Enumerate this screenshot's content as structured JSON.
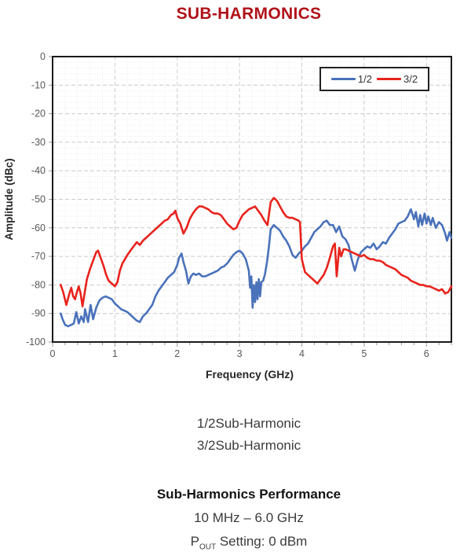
{
  "page": {
    "title": "SUB-HARMONICS"
  },
  "colors": {
    "title": "#b0121a",
    "series_blue": "#4a72ba",
    "series_red": "#e8231c"
  },
  "captions": {
    "line1": "1/2Sub-Harmonic",
    "line2": "3/2Sub-Harmonic"
  },
  "performance": {
    "heading": "Sub-Harmonics Performance",
    "range": "10 MHz – 6.0 GHz",
    "pout_prefix": "P",
    "pout_sub": "OUT",
    "pout_rest": " Setting: 0 dBm"
  },
  "chart_data": {
    "type": "line",
    "title": "SUB-HARMONICS",
    "xlabel": "Frequency (GHz)",
    "ylabel": "Amplitude (dBc)",
    "xlim": [
      0,
      6.4
    ],
    "ylim": [
      -100,
      0
    ],
    "x_major_ticks": [
      0,
      1,
      2,
      3,
      4,
      5,
      6
    ],
    "x_minor_step": 0.2,
    "y_major_ticks": [
      0,
      -10,
      -20,
      -30,
      -40,
      -50,
      -60,
      -70,
      -80,
      -90,
      -100
    ],
    "y_minor_step": 2,
    "grid": true,
    "legend_position": "top-right",
    "series": [
      {
        "name": "1/2",
        "color": "#4a72ba",
        "x": [
          0.13,
          0.16,
          0.2,
          0.25,
          0.3,
          0.34,
          0.38,
          0.42,
          0.46,
          0.5,
          0.52,
          0.57,
          0.61,
          0.65,
          0.7,
          0.75,
          0.8,
          0.85,
          0.9,
          0.95,
          1.0,
          1.05,
          1.1,
          1.15,
          1.2,
          1.25,
          1.3,
          1.35,
          1.4,
          1.45,
          1.5,
          1.55,
          1.6,
          1.65,
          1.7,
          1.75,
          1.8,
          1.85,
          1.9,
          1.95,
          2.0,
          2.03,
          2.07,
          2.1,
          2.14,
          2.18,
          2.22,
          2.26,
          2.3,
          2.35,
          2.4,
          2.45,
          2.5,
          2.55,
          2.6,
          2.65,
          2.7,
          2.75,
          2.8,
          2.85,
          2.9,
          2.95,
          3.0,
          3.05,
          3.1,
          3.15,
          3.17,
          3.19,
          3.21,
          3.23,
          3.25,
          3.27,
          3.29,
          3.31,
          3.33,
          3.35,
          3.38,
          3.41,
          3.44,
          3.47,
          3.5,
          3.55,
          3.6,
          3.65,
          3.7,
          3.75,
          3.8,
          3.85,
          3.9,
          3.95,
          4.0,
          4.05,
          4.1,
          4.15,
          4.2,
          4.25,
          4.3,
          4.35,
          4.4,
          4.45,
          4.5,
          4.55,
          4.6,
          4.65,
          4.7,
          4.75,
          4.8,
          4.85,
          4.9,
          4.95,
          5.0,
          5.05,
          5.1,
          5.15,
          5.2,
          5.25,
          5.3,
          5.35,
          5.4,
          5.45,
          5.5,
          5.55,
          5.6,
          5.65,
          5.7,
          5.75,
          5.8,
          5.83,
          5.87,
          5.9,
          5.93,
          5.97,
          6.0,
          6.03,
          6.07,
          6.1,
          6.15,
          6.2,
          6.25,
          6.3,
          6.33,
          6.37,
          6.4
        ],
        "y": [
          -90,
          -92,
          -94,
          -94.5,
          -94,
          -93.5,
          -89.5,
          -93.5,
          -91,
          -93,
          -88.5,
          -93,
          -87,
          -92,
          -88,
          -85.5,
          -84.5,
          -84,
          -84.5,
          -85,
          -86.5,
          -87.5,
          -88.5,
          -89,
          -89.5,
          -90.5,
          -91.5,
          -92.5,
          -93,
          -91,
          -90,
          -88.5,
          -87,
          -84,
          -82,
          -80.5,
          -79,
          -77.5,
          -76.5,
          -75.5,
          -73,
          -70.5,
          -69,
          -72,
          -75,
          -79.5,
          -77,
          -76,
          -76.5,
          -76,
          -77,
          -77,
          -76.5,
          -76,
          -75.5,
          -75,
          -74,
          -73.5,
          -72.5,
          -71,
          -69.5,
          -68.5,
          -68,
          -69,
          -71,
          -75,
          -81,
          -77,
          -88,
          -80,
          -86,
          -79,
          -85,
          -78,
          -84,
          -79,
          -78.5,
          -76,
          -72,
          -67,
          -60.5,
          -59,
          -60,
          -61,
          -63,
          -64.5,
          -66.5,
          -69.5,
          -70.5,
          -69,
          -68,
          -66.5,
          -65.5,
          -63.5,
          -61.5,
          -60.5,
          -59.5,
          -58,
          -57.5,
          -59,
          -59,
          -61.5,
          -59.5,
          -63,
          -64,
          -66,
          -71,
          -75,
          -71,
          -68.5,
          -67.5,
          -66.5,
          -67,
          -65.5,
          -67.5,
          -66.5,
          -65,
          -65.5,
          -63.5,
          -62,
          -60.5,
          -58.5,
          -58,
          -57.5,
          -56,
          -53.5,
          -57,
          -54.5,
          -59.5,
          -55.5,
          -59,
          -55,
          -58.5,
          -56,
          -59,
          -56.5,
          -60,
          -58,
          -59,
          -62,
          -64.5,
          -61.5,
          -63.5
        ]
      },
      {
        "name": "3/2",
        "color": "#e8231c",
        "x": [
          0.13,
          0.17,
          0.22,
          0.27,
          0.3,
          0.33,
          0.36,
          0.39,
          0.42,
          0.45,
          0.48,
          0.52,
          0.55,
          0.6,
          0.65,
          0.7,
          0.73,
          0.78,
          0.82,
          0.86,
          0.9,
          0.95,
          1.0,
          1.04,
          1.08,
          1.12,
          1.16,
          1.2,
          1.25,
          1.3,
          1.35,
          1.4,
          1.45,
          1.5,
          1.55,
          1.6,
          1.65,
          1.7,
          1.75,
          1.8,
          1.85,
          1.9,
          1.94,
          1.97,
          2.0,
          2.05,
          2.1,
          2.15,
          2.2,
          2.25,
          2.3,
          2.35,
          2.4,
          2.45,
          2.5,
          2.55,
          2.6,
          2.65,
          2.7,
          2.75,
          2.8,
          2.85,
          2.9,
          2.95,
          3.0,
          3.05,
          3.1,
          3.15,
          3.2,
          3.25,
          3.3,
          3.35,
          3.4,
          3.45,
          3.5,
          3.55,
          3.6,
          3.65,
          3.7,
          3.75,
          3.8,
          3.85,
          3.9,
          3.95,
          3.97,
          4.0,
          4.05,
          4.1,
          4.15,
          4.2,
          4.25,
          4.3,
          4.35,
          4.4,
          4.45,
          4.5,
          4.53,
          4.56,
          4.6,
          4.63,
          4.67,
          4.7,
          4.75,
          4.8,
          4.85,
          4.9,
          4.95,
          5.0,
          5.05,
          5.1,
          5.15,
          5.2,
          5.25,
          5.3,
          5.35,
          5.4,
          5.45,
          5.5,
          5.55,
          5.6,
          5.65,
          5.7,
          5.75,
          5.8,
          5.85,
          5.9,
          5.95,
          6.0,
          6.05,
          6.1,
          6.15,
          6.2,
          6.25,
          6.3,
          6.35,
          6.4
        ],
        "y": [
          -80,
          -82.5,
          -87,
          -83,
          -81,
          -84,
          -85,
          -82.5,
          -80.5,
          -83,
          -87.5,
          -82,
          -78,
          -74.5,
          -71.5,
          -68.5,
          -68,
          -71,
          -73.5,
          -76.5,
          -78.5,
          -79.5,
          -80.5,
          -79,
          -75,
          -72.5,
          -71,
          -69.5,
          -68,
          -66.5,
          -65,
          -66,
          -64.5,
          -63.5,
          -62.5,
          -61.5,
          -60.5,
          -59.5,
          -58.5,
          -57.5,
          -57,
          -55.5,
          -55,
          -54,
          -56.5,
          -58.5,
          -62,
          -60,
          -57,
          -55,
          -53.5,
          -52.5,
          -52.5,
          -53,
          -53.5,
          -54.5,
          -55,
          -55,
          -55.5,
          -57,
          -58.5,
          -59.5,
          -60.5,
          -60,
          -57.5,
          -55.5,
          -54.5,
          -53.5,
          -53,
          -52.5,
          -54,
          -55.5,
          -57.5,
          -59,
          -51,
          -49.5,
          -50.5,
          -52.5,
          -54.5,
          -56,
          -56.5,
          -56.5,
          -57,
          -57.5,
          -58,
          -71,
          -75.5,
          -76.5,
          -77.5,
          -78.5,
          -79.5,
          -78,
          -76.5,
          -74,
          -70.5,
          -66.5,
          -65.5,
          -77,
          -67,
          -70,
          -67.5,
          -67.5,
          -68,
          -68.5,
          -69,
          -69.5,
          -70,
          -69.5,
          -70.5,
          -71,
          -71,
          -71.5,
          -71.5,
          -72,
          -73,
          -73.5,
          -74,
          -74.5,
          -75.5,
          -76.5,
          -77,
          -77.5,
          -78.5,
          -79,
          -79.5,
          -80,
          -80,
          -80.5,
          -80.5,
          -81,
          -81.5,
          -82,
          -81.5,
          -83,
          -82.5,
          -80.5
        ]
      }
    ]
  }
}
